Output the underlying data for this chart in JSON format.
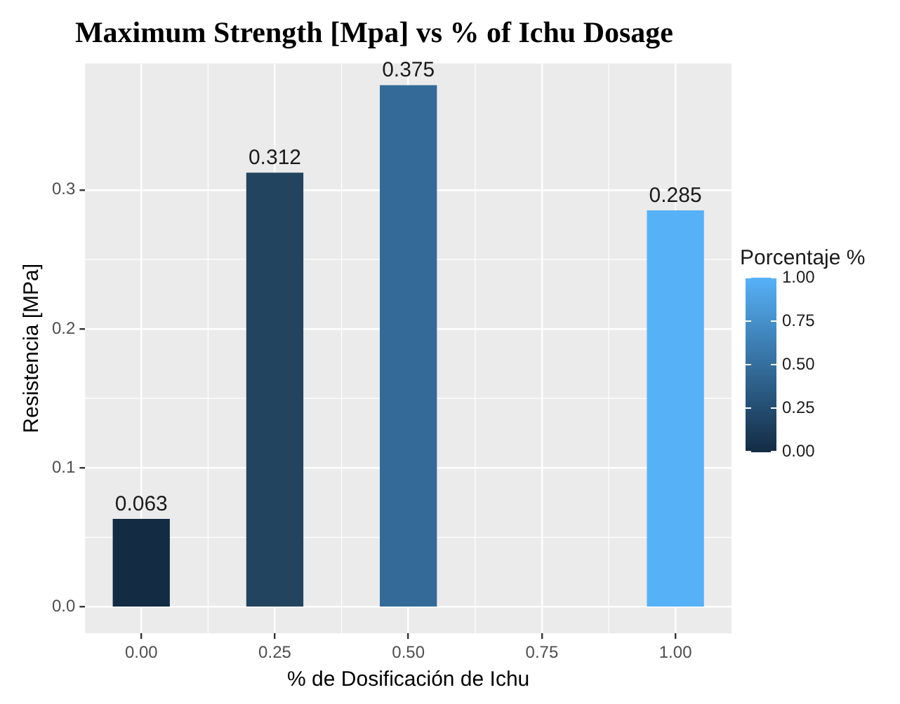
{
  "chart_data": {
    "type": "bar",
    "title": "Maximum Strength [Mpa] vs % of Ichu Dosage",
    "xlabel": "% de Dosificación de Ichu",
    "ylabel": "Resistencia [MPa]",
    "clabel": "Porcentaje %",
    "x": [
      0,
      0.25,
      0.5,
      1
    ],
    "values": [
      0.063,
      0.312,
      0.375,
      0.285
    ],
    "colors": [
      "#132b43",
      "#22445f",
      "#336a98",
      "#56b1f7"
    ],
    "data_labels": true,
    "xlim": [
      -0.105,
      1.105
    ],
    "xticks": [
      {
        "value": 0,
        "label": "0.00"
      },
      {
        "value": 0.25,
        "label": "0.25"
      },
      {
        "value": 0.5,
        "label": "0.50"
      },
      {
        "value": 0.75,
        "label": "0.75"
      },
      {
        "value": 1,
        "label": "1.00"
      }
    ],
    "ylim": [
      -0.019,
      0.391
    ],
    "yticks": [
      {
        "value": 0,
        "label": "0.0"
      },
      0.1,
      0.2,
      0.3
    ],
    "clim": [
      0,
      1
    ],
    "cticks": [
      {
        "value": 0,
        "label": "0.00"
      },
      {
        "value": 0.25,
        "label": "0.25"
      },
      {
        "value": 0.5,
        "label": "0.50"
      },
      {
        "value": 0.75,
        "label": "0.75"
      },
      {
        "value": 1,
        "label": "1.00"
      }
    ],
    "grid": true
  }
}
